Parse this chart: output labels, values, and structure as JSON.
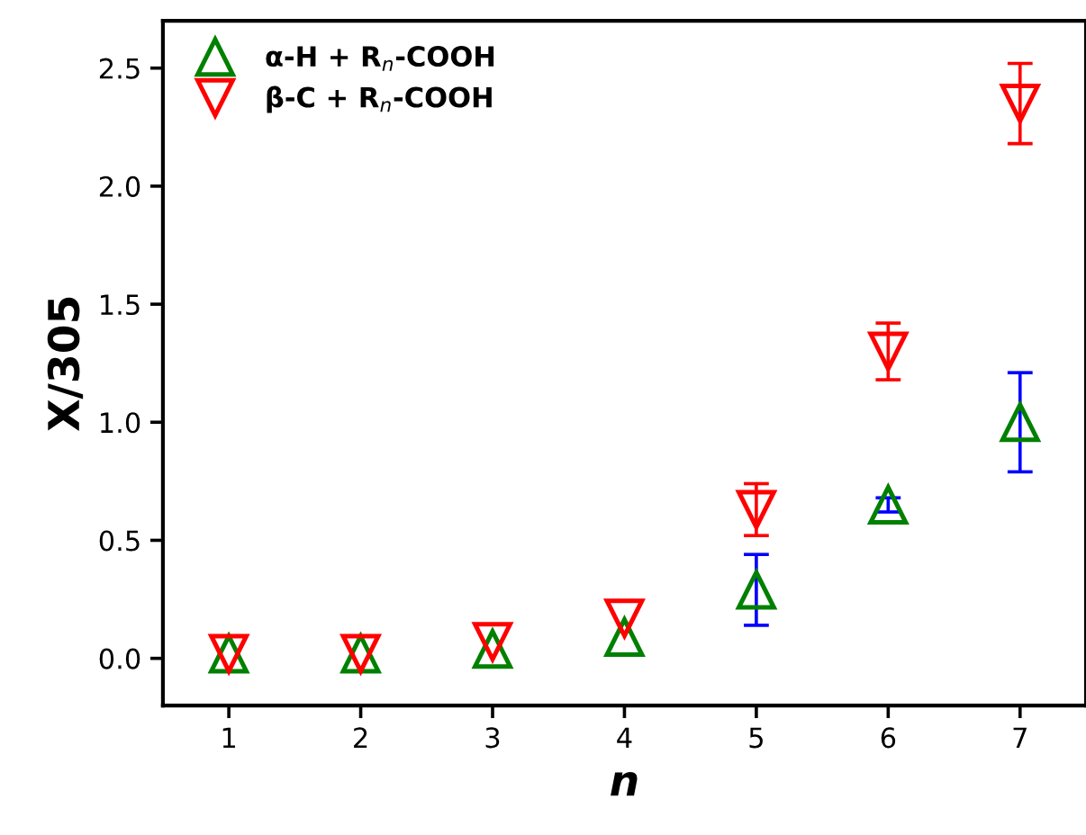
{
  "chart_data": {
    "type": "scatter",
    "xlabel": "n",
    "ylabel": "X/305",
    "x": [
      1,
      2,
      3,
      4,
      5,
      6,
      7
    ],
    "series": [
      {
        "name": "α-H + R$_{n}$-COOH",
        "color": "#008000",
        "marker": "triangle",
        "values": [
          0.02,
          0.02,
          0.04,
          0.09,
          0.29,
          0.65,
          1.0
        ],
        "errors": [
          null,
          null,
          null,
          null,
          0.15,
          0.03,
          0.21
        ]
      },
      {
        "name": "β-C + R$_{n}$-COOH",
        "color": "#ff0000",
        "marker": "triangle_down",
        "values": [
          0.02,
          0.02,
          0.07,
          0.17,
          0.63,
          1.3,
          2.35
        ],
        "errors": [
          null,
          null,
          null,
          null,
          0.11,
          0.12,
          0.17
        ]
      }
    ],
    "xlim": [
      0.5,
      7.5
    ],
    "ylim": [
      -0.2,
      2.7
    ],
    "xticks": [
      1,
      2,
      3,
      4,
      5,
      6,
      7
    ],
    "yticks": [
      {
        "value": 0,
        "label": "0.0"
      },
      {
        "value": 0.5,
        "label": "0.5"
      },
      {
        "value": 1,
        "label": "1.0"
      },
      {
        "value": 1.5,
        "label": "1.5"
      },
      {
        "value": 2,
        "label": "2.0"
      },
      {
        "value": 2.5,
        "label": "2.5"
      }
    ],
    "grid": false,
    "legend": "top left"
  }
}
